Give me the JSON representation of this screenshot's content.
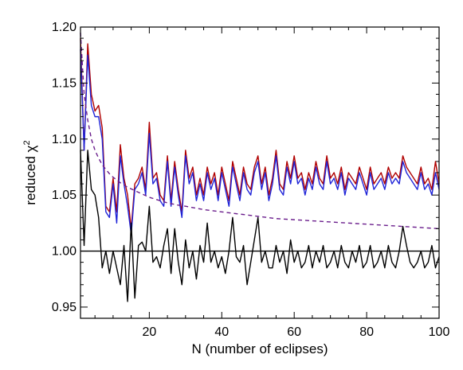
{
  "chart_data": {
    "type": "line",
    "xlabel": "N (number of eclipses)",
    "ylabel_main": "reduced χ",
    "ylabel_sup": "2",
    "xlim": [
      1,
      100
    ],
    "ylim": [
      0.94,
      1.2
    ],
    "x_ticks": [
      20,
      40,
      60,
      80,
      100
    ],
    "y_ticks": [
      0.95,
      1.0,
      1.05,
      1.1,
      1.15,
      1.2
    ],
    "x_tick_labels": [
      "20",
      "40",
      "60",
      "80",
      "100"
    ],
    "y_tick_labels": [
      "0.95",
      "1.00",
      "1.05",
      "1.10",
      "1.15",
      "1.20"
    ],
    "reference_line": {
      "y": 1.0,
      "color": "#000000"
    },
    "series": [
      {
        "color": "#b00000",
        "style": "solid",
        "x": [
          1,
          2,
          3,
          4,
          5,
          6,
          7,
          8,
          9,
          10,
          11,
          12,
          13,
          14,
          15,
          16,
          17,
          18,
          19,
          20,
          21,
          22,
          23,
          24,
          25,
          26,
          27,
          28,
          29,
          30,
          31,
          32,
          33,
          34,
          35,
          36,
          37,
          38,
          39,
          40,
          41,
          42,
          43,
          44,
          45,
          46,
          47,
          48,
          49,
          50,
          51,
          52,
          53,
          54,
          55,
          56,
          57,
          58,
          59,
          60,
          61,
          62,
          63,
          64,
          65,
          66,
          67,
          68,
          69,
          70,
          71,
          72,
          73,
          74,
          75,
          76,
          77,
          78,
          79,
          80,
          81,
          82,
          83,
          84,
          85,
          86,
          87,
          88,
          89,
          90,
          91,
          92,
          93,
          94,
          95,
          96,
          97,
          98,
          99,
          100
        ],
        "values": [
          1.19,
          1.09,
          1.185,
          1.14,
          1.125,
          1.13,
          1.11,
          1.04,
          1.035,
          1.065,
          1.035,
          1.095,
          1.065,
          1.05,
          1.02,
          1.06,
          1.065,
          1.075,
          1.055,
          1.115,
          1.065,
          1.07,
          1.05,
          1.045,
          1.085,
          1.045,
          1.08,
          1.055,
          1.035,
          1.09,
          1.065,
          1.075,
          1.05,
          1.065,
          1.05,
          1.075,
          1.06,
          1.07,
          1.05,
          1.075,
          1.06,
          1.045,
          1.08,
          1.065,
          1.05,
          1.075,
          1.06,
          1.055,
          1.075,
          1.085,
          1.06,
          1.075,
          1.05,
          1.065,
          1.09,
          1.06,
          1.055,
          1.08,
          1.065,
          1.085,
          1.065,
          1.07,
          1.055,
          1.07,
          1.06,
          1.08,
          1.065,
          1.06,
          1.085,
          1.065,
          1.07,
          1.06,
          1.075,
          1.055,
          1.07,
          1.065,
          1.06,
          1.075,
          1.065,
          1.055,
          1.075,
          1.06,
          1.065,
          1.07,
          1.06,
          1.075,
          1.065,
          1.07,
          1.065,
          1.085,
          1.075,
          1.07,
          1.065,
          1.06,
          1.075,
          1.06,
          1.065,
          1.055,
          1.08,
          1.06
        ]
      },
      {
        "color": "#1f24d8",
        "style": "solid",
        "x": [
          1,
          2,
          3,
          4,
          5,
          6,
          7,
          8,
          9,
          10,
          11,
          12,
          13,
          14,
          15,
          16,
          17,
          18,
          19,
          20,
          21,
          22,
          23,
          24,
          25,
          26,
          27,
          28,
          29,
          30,
          31,
          32,
          33,
          34,
          35,
          36,
          37,
          38,
          39,
          40,
          41,
          42,
          43,
          44,
          45,
          46,
          47,
          48,
          49,
          50,
          51,
          52,
          53,
          54,
          55,
          56,
          57,
          58,
          59,
          60,
          61,
          62,
          63,
          64,
          65,
          66,
          67,
          68,
          69,
          70,
          71,
          72,
          73,
          74,
          75,
          76,
          77,
          78,
          79,
          80,
          81,
          82,
          83,
          84,
          85,
          86,
          87,
          88,
          89,
          90,
          91,
          92,
          93,
          94,
          95,
          96,
          97,
          98,
          99,
          100
        ],
        "values": [
          1.18,
          1.09,
          1.175,
          1.13,
          1.12,
          1.12,
          1.1,
          1.035,
          1.03,
          1.06,
          1.025,
          1.085,
          1.06,
          1.04,
          1.015,
          1.055,
          1.06,
          1.07,
          1.05,
          1.105,
          1.06,
          1.065,
          1.045,
          1.04,
          1.08,
          1.04,
          1.075,
          1.05,
          1.03,
          1.085,
          1.06,
          1.07,
          1.045,
          1.06,
          1.045,
          1.07,
          1.055,
          1.065,
          1.045,
          1.07,
          1.055,
          1.04,
          1.075,
          1.06,
          1.045,
          1.07,
          1.055,
          1.05,
          1.07,
          1.08,
          1.055,
          1.07,
          1.045,
          1.06,
          1.085,
          1.055,
          1.05,
          1.075,
          1.06,
          1.08,
          1.06,
          1.065,
          1.05,
          1.065,
          1.055,
          1.075,
          1.06,
          1.055,
          1.08,
          1.06,
          1.065,
          1.055,
          1.07,
          1.05,
          1.065,
          1.06,
          1.055,
          1.07,
          1.06,
          1.05,
          1.07,
          1.055,
          1.06,
          1.065,
          1.055,
          1.07,
          1.06,
          1.065,
          1.06,
          1.08,
          1.07,
          1.065,
          1.06,
          1.055,
          1.07,
          1.055,
          1.06,
          1.05,
          1.07,
          1.055
        ]
      },
      {
        "color": "#000000",
        "style": "solid",
        "x": [
          1,
          2,
          3,
          4,
          5,
          6,
          7,
          8,
          9,
          10,
          11,
          12,
          13,
          14,
          15,
          16,
          17,
          18,
          19,
          20,
          21,
          22,
          23,
          24,
          25,
          26,
          27,
          28,
          29,
          30,
          31,
          32,
          33,
          34,
          35,
          36,
          37,
          38,
          39,
          40,
          41,
          42,
          43,
          44,
          45,
          46,
          47,
          48,
          49,
          50,
          51,
          52,
          53,
          54,
          55,
          56,
          57,
          58,
          59,
          60,
          61,
          62,
          63,
          64,
          65,
          66,
          67,
          68,
          69,
          70,
          71,
          72,
          73,
          74,
          75,
          76,
          77,
          78,
          79,
          80,
          81,
          82,
          83,
          84,
          85,
          86,
          87,
          88,
          89,
          90,
          91,
          92,
          93,
          94,
          95,
          96,
          97,
          98,
          99,
          100
        ],
        "values": [
          1.09,
          1.005,
          1.09,
          1.055,
          1.05,
          1.03,
          0.985,
          1.0,
          0.98,
          1.0,
          0.985,
          0.97,
          1.005,
          0.955,
          1.025,
          0.958,
          1.005,
          1.008,
          1.0,
          1.04,
          0.99,
          0.995,
          0.985,
          1.005,
          1.02,
          0.98,
          1.02,
          0.99,
          0.97,
          1.01,
          0.985,
          1.0,
          0.975,
          1.005,
          0.99,
          1.025,
          0.99,
          1.0,
          0.985,
          0.995,
          0.98,
          1.0,
          1.03,
          0.995,
          0.99,
          1.005,
          0.97,
          0.99,
          1.01,
          1.03,
          0.99,
          1.0,
          0.985,
          0.985,
          1.005,
          0.99,
          1.0,
          0.98,
          1.01,
          0.99,
          1.0,
          0.985,
          0.99,
          1.005,
          0.985,
          1.0,
          0.99,
          1.005,
          0.985,
          0.99,
          1.0,
          0.985,
          1.005,
          0.99,
          0.985,
          1.0,
          0.99,
          1.005,
          0.985,
          0.99,
          1.005,
          0.985,
          0.99,
          1.0,
          0.985,
          1.005,
          0.99,
          0.985,
          1.0,
          1.022,
          1.005,
          0.99,
          0.985,
          0.99,
          1.0,
          0.985,
          0.99,
          1.005,
          0.985,
          0.995
        ]
      },
      {
        "color": "#6a1d8c",
        "style": "dashed",
        "x": [
          1,
          2,
          3,
          4,
          5,
          6,
          7,
          8,
          9,
          10,
          12,
          14,
          16,
          18,
          20,
          22,
          25,
          28,
          30,
          35,
          40,
          45,
          50,
          55,
          60,
          65,
          70,
          75,
          80,
          85,
          90,
          95,
          100
        ],
        "values": [
          1.195,
          1.14,
          1.117,
          1.1,
          1.09,
          1.083,
          1.077,
          1.073,
          1.069,
          1.066,
          1.061,
          1.057,
          1.054,
          1.051,
          1.048,
          1.046,
          1.043,
          1.041,
          1.04,
          1.037,
          1.035,
          1.033,
          1.031,
          1.029,
          1.028,
          1.027,
          1.026,
          1.025,
          1.024,
          1.023,
          1.022,
          1.021,
          1.02
        ]
      }
    ]
  }
}
